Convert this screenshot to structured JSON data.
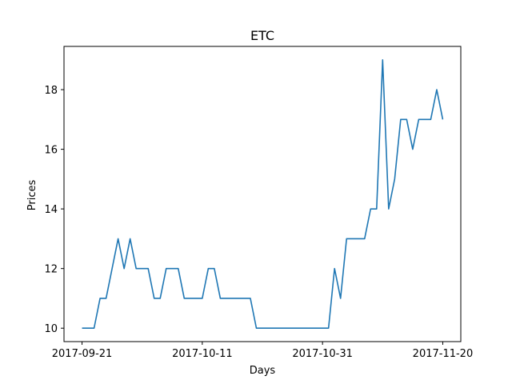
{
  "chart_data": {
    "type": "line",
    "title": "ETC",
    "xlabel": "Days",
    "ylabel": "Prices",
    "x_start": "2017-09-21",
    "x_ticks": [
      "2017-09-21",
      "2017-10-11",
      "2017-10-31",
      "2017-11-20"
    ],
    "y_ticks": [
      10,
      12,
      14,
      16,
      18
    ],
    "xlim": [
      "2017-09-18",
      "2017-11-23"
    ],
    "ylim": [
      9.55,
      19.45
    ],
    "grid": false,
    "series": [
      {
        "color": "#1f77b4",
        "points": [
          [
            "2017-09-21",
            10
          ],
          [
            "2017-09-22",
            10
          ],
          [
            "2017-09-23",
            10
          ],
          [
            "2017-09-24",
            11
          ],
          [
            "2017-09-25",
            11
          ],
          [
            "2017-09-26",
            12
          ],
          [
            "2017-09-27",
            13
          ],
          [
            "2017-09-28",
            12
          ],
          [
            "2017-09-29",
            13
          ],
          [
            "2017-09-30",
            12
          ],
          [
            "2017-10-01",
            12
          ],
          [
            "2017-10-02",
            12
          ],
          [
            "2017-10-03",
            11
          ],
          [
            "2017-10-04",
            11
          ],
          [
            "2017-10-05",
            12
          ],
          [
            "2017-10-06",
            12
          ],
          [
            "2017-10-07",
            12
          ],
          [
            "2017-10-08",
            11
          ],
          [
            "2017-10-09",
            11
          ],
          [
            "2017-10-10",
            11
          ],
          [
            "2017-10-11",
            11
          ],
          [
            "2017-10-12",
            12
          ],
          [
            "2017-10-13",
            12
          ],
          [
            "2017-10-14",
            11
          ],
          [
            "2017-10-15",
            11
          ],
          [
            "2017-10-16",
            11
          ],
          [
            "2017-10-17",
            11
          ],
          [
            "2017-10-18",
            11
          ],
          [
            "2017-10-19",
            11
          ],
          [
            "2017-10-20",
            10
          ],
          [
            "2017-10-21",
            10
          ],
          [
            "2017-10-22",
            10
          ],
          [
            "2017-10-23",
            10
          ],
          [
            "2017-10-24",
            10
          ],
          [
            "2017-10-25",
            10
          ],
          [
            "2017-10-26",
            10
          ],
          [
            "2017-10-27",
            10
          ],
          [
            "2017-10-28",
            10
          ],
          [
            "2017-10-29",
            10
          ],
          [
            "2017-10-30",
            10
          ],
          [
            "2017-10-31",
            10
          ],
          [
            "2017-11-01",
            10
          ],
          [
            "2017-11-02",
            12
          ],
          [
            "2017-11-03",
            11
          ],
          [
            "2017-11-04",
            13
          ],
          [
            "2017-11-05",
            13
          ],
          [
            "2017-11-06",
            13
          ],
          [
            "2017-11-07",
            13
          ],
          [
            "2017-11-08",
            14
          ],
          [
            "2017-11-09",
            14
          ],
          [
            "2017-11-10",
            19
          ],
          [
            "2017-11-11",
            14
          ],
          [
            "2017-11-12",
            15
          ],
          [
            "2017-11-13",
            17
          ],
          [
            "2017-11-14",
            17
          ],
          [
            "2017-11-15",
            16
          ],
          [
            "2017-11-16",
            17
          ],
          [
            "2017-11-17",
            17
          ],
          [
            "2017-11-18",
            17
          ],
          [
            "2017-11-19",
            18
          ],
          [
            "2017-11-20",
            17
          ]
        ]
      }
    ]
  }
}
